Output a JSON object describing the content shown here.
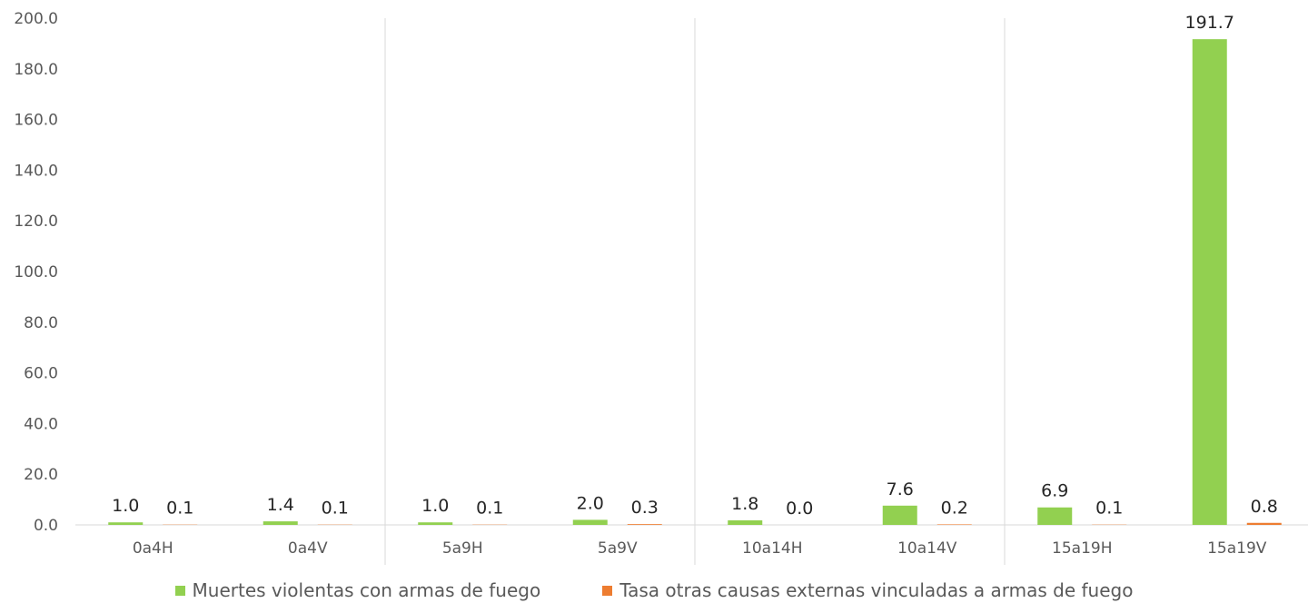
{
  "chart_data": {
    "type": "bar",
    "title": "",
    "xlabel": "",
    "ylabel": "",
    "categories": [
      "0a4H",
      "0a4V",
      "5a9H",
      "5a9V",
      "10a14H",
      "10a14V",
      "15a19H",
      "15a19V"
    ],
    "series": [
      {
        "name": "Muertes violentas con armas de fuego",
        "color": "#92D050",
        "values": [
          1.0,
          1.4,
          1.0,
          2.0,
          1.8,
          7.6,
          6.9,
          191.7
        ],
        "labels": [
          "1.0",
          "1.4",
          "1.0",
          "2.0",
          "1.8",
          "7.6",
          "6.9",
          "191.7"
        ]
      },
      {
        "name": "Tasa otras causas externas vinculadas a armas de fuego",
        "color": "#ED7D31",
        "values": [
          0.1,
          0.1,
          0.1,
          0.3,
          0.0,
          0.2,
          0.1,
          0.8
        ],
        "labels": [
          "0.1",
          "0.1",
          "0.1",
          "0.3",
          "0.0",
          "0.2",
          "0.1",
          "0.8"
        ]
      }
    ],
    "ylim": [
      0,
      200
    ],
    "yticks": [
      "0.0",
      "20.0",
      "40.0",
      "60.0",
      "80.0",
      "100.0",
      "120.0",
      "140.0",
      "160.0",
      "180.0",
      "200.0"
    ],
    "grid": false,
    "group_separators_after": [
      1,
      3,
      5
    ],
    "legend_position": "bottom"
  }
}
